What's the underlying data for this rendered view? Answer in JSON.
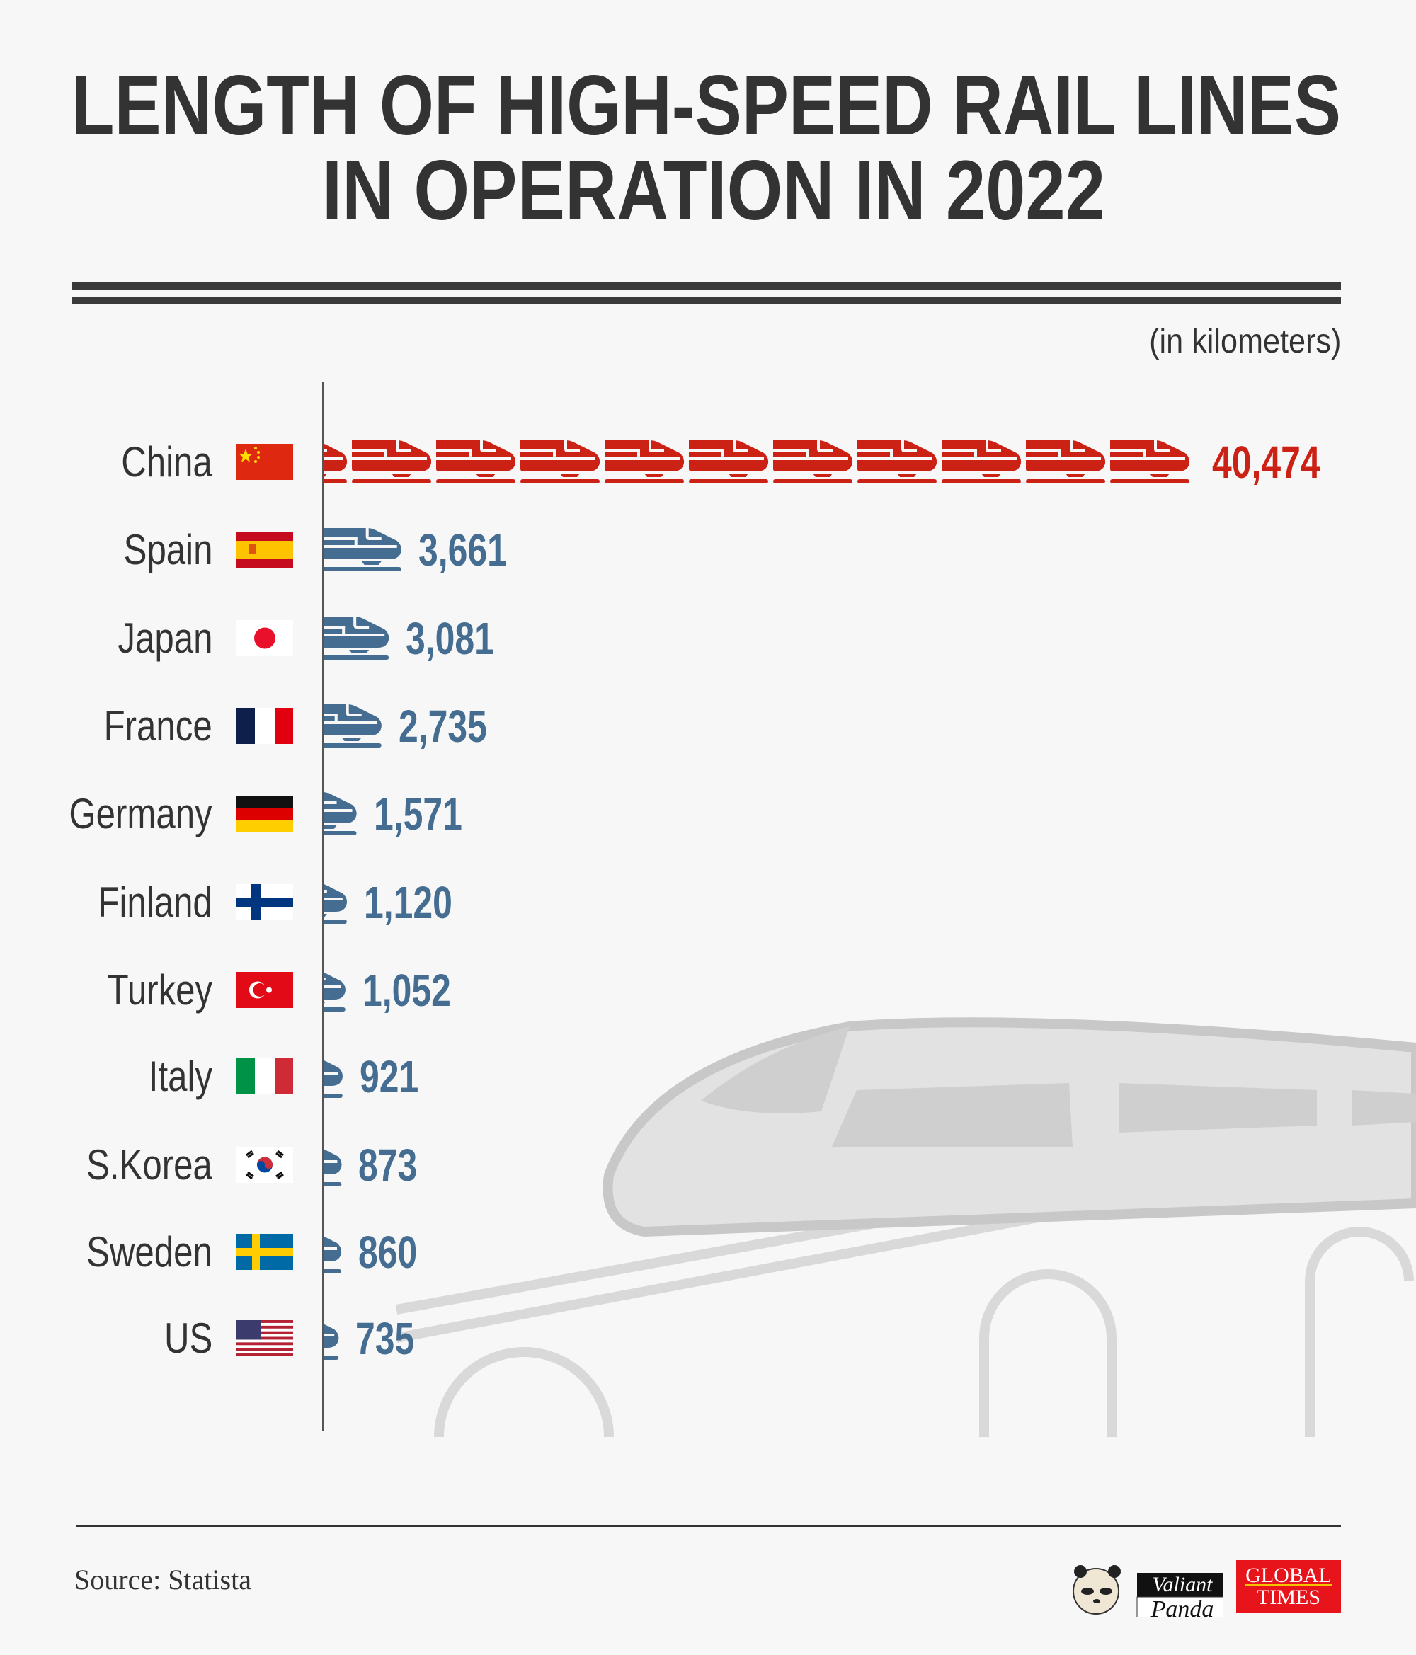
{
  "title": {
    "line1": "LENGTH OF HIGH-SPEED RAIL LINES",
    "line2": "IN OPERATION IN 2022"
  },
  "unit_note": "(in kilometers)",
  "source": "Source: Statista",
  "logos": {
    "valiant_panda": [
      "Valiant",
      "Panda"
    ],
    "global_times": [
      "GLOBAL",
      "TIMES"
    ]
  },
  "colors": {
    "highlight": "#cc2216",
    "default": "#456d91",
    "text": "#333333",
    "background": "#f7f7f7"
  },
  "chart_data": {
    "type": "bar",
    "orientation": "horizontal",
    "unit": "kilometers",
    "mark": "train-icon pictogram",
    "categories": [
      "China",
      "Spain",
      "Japan",
      "France",
      "Germany",
      "Finland",
      "Turkey",
      "Italy",
      "S.Korea",
      "Sweden",
      "US"
    ],
    "values": [
      40474,
      3661,
      3081,
      2735,
      1571,
      1120,
      1052,
      921,
      873,
      860,
      735
    ],
    "labels": [
      "40,474",
      "3,661",
      "3,081",
      "2,735",
      "1,571",
      "1,120",
      "1,052",
      "921",
      "873",
      "860",
      "735"
    ],
    "highlight_category": "China",
    "xlim": [
      0,
      40474
    ]
  }
}
